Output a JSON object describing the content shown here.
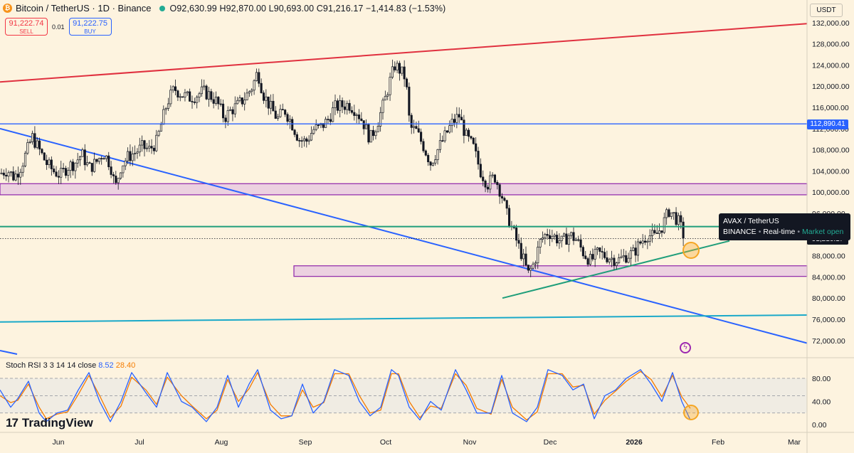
{
  "header": {
    "symbol_title": "Bitcoin / TetherUS · 1D · Binance",
    "symbol_icon": "bitcoin-icon",
    "ohlc": {
      "open": "O92,630.99",
      "high": "H92,870.00",
      "low": "L90,693.00",
      "close": "C91,216.17",
      "change": "−1,414.83 (−1.53%)"
    }
  },
  "trade": {
    "sell_price": "91,222.74",
    "sell_label": "SELL",
    "spread": "0.01",
    "buy_price": "91,222.75",
    "buy_label": "BUY"
  },
  "currency": "USDT",
  "tooltip": {
    "symbol": "AVAX / TetherUS",
    "exchange": "BINANCE",
    "feed": "Real-time",
    "status": "Market open"
  },
  "price_axis": {
    "labels": [
      "132,000.00",
      "128,000.00",
      "124,000.00",
      "120,000.00",
      "116,000.00",
      "112,000.00",
      "108,000.00",
      "104,000.00",
      "100,000.00",
      "96,000.00",
      "92,000.00",
      "88,000.00",
      "84,000.00",
      "80,000.00",
      "76,000.00",
      "72,000.00"
    ],
    "horizontal_level_tag": "112,890.41",
    "current_price_tag": "91,216.17"
  },
  "time_axis": {
    "labels": [
      "Jun",
      "Jul",
      "Aug",
      "Sep",
      "Oct",
      "Nov",
      "Dec",
      "2026",
      "Feb",
      "Mar"
    ]
  },
  "rsi": {
    "legend": "Stoch RSI 3 3 14 14 close",
    "k_value": "8.52",
    "d_value": "28.40",
    "axis_labels": [
      "80.00",
      "40.00",
      "0.00"
    ],
    "levels": [
      80,
      50,
      20
    ]
  },
  "branding": {
    "logo_text": "TradingView",
    "logo_mark": "17"
  },
  "colors": {
    "background": "#fdf3df",
    "up": "#131722",
    "resistance_line": "#e0303f",
    "blue_line": "#2962ff",
    "green_line": "#1f9e7a",
    "cyan_line": "#1aa9c9",
    "zone_fill": "#e6c5e0",
    "zone_border": "#8e24aa",
    "rsi_k": "#2962ff",
    "rsi_d": "#f57c00",
    "highlight_circle": "#f5a623"
  },
  "chart_data": {
    "type": "candlestick",
    "symbol": "BTCUSDT",
    "timeframe": "1D",
    "ylim": [
      70000,
      134000
    ],
    "x_range": [
      "2025-05-01",
      "2026-03-08"
    ],
    "close_path": [
      [
        0,
        103500
      ],
      [
        10,
        104200
      ],
      [
        20,
        102800
      ],
      [
        30,
        105000
      ],
      [
        40,
        108500
      ],
      [
        45,
        110500
      ],
      [
        55,
        108000
      ],
      [
        65,
        105500
      ],
      [
        75,
        104000
      ],
      [
        85,
        103200
      ],
      [
        95,
        104800
      ],
      [
        105,
        105500
      ],
      [
        115,
        107200
      ],
      [
        125,
        104500
      ],
      [
        135,
        105600
      ],
      [
        145,
        107500
      ],
      [
        155,
        105300
      ],
      [
        162,
        100800
      ],
      [
        170,
        105000
      ],
      [
        180,
        106700
      ],
      [
        190,
        107500
      ],
      [
        200,
        108500
      ],
      [
        210,
        108000
      ],
      [
        220,
        109500
      ],
      [
        228,
        113500
      ],
      [
        235,
        117000
      ],
      [
        245,
        119500
      ],
      [
        255,
        118500
      ],
      [
        265,
        117800
      ],
      [
        275,
        118200
      ],
      [
        285,
        119000
      ],
      [
        295,
        118300
      ],
      [
        305,
        117000
      ],
      [
        315,
        114000
      ],
      [
        325,
        115500
      ],
      [
        335,
        116500
      ],
      [
        345,
        118000
      ],
      [
        355,
        120000
      ],
      [
        362,
        122800
      ],
      [
        370,
        118500
      ],
      [
        380,
        116000
      ],
      [
        390,
        113800
      ],
      [
        400,
        115500
      ],
      [
        410,
        113000
      ],
      [
        420,
        110000
      ],
      [
        430,
        109500
      ],
      [
        440,
        111800
      ],
      [
        450,
        112200
      ],
      [
        460,
        113500
      ],
      [
        470,
        116000
      ],
      [
        480,
        116300
      ],
      [
        490,
        116600
      ],
      [
        500,
        115500
      ],
      [
        510,
        113300
      ],
      [
        520,
        110000
      ],
      [
        530,
        113000
      ],
      [
        540,
        117000
      ],
      [
        548,
        121000
      ],
      [
        555,
        124000
      ],
      [
        562,
        123000
      ],
      [
        570,
        121500
      ],
      [
        576,
        112200
      ],
      [
        585,
        111500
      ],
      [
        595,
        108700
      ],
      [
        605,
        105500
      ],
      [
        615,
        108000
      ],
      [
        625,
        110500
      ],
      [
        635,
        113000
      ],
      [
        645,
        114500
      ],
      [
        655,
        110500
      ],
      [
        665,
        108500
      ],
      [
        675,
        104000
      ],
      [
        685,
        101500
      ],
      [
        695,
        103000
      ],
      [
        705,
        99500
      ],
      [
        712,
        95800
      ],
      [
        720,
        93000
      ],
      [
        728,
        90000
      ],
      [
        735,
        87500
      ],
      [
        742,
        84500
      ],
      [
        750,
        86500
      ],
      [
        760,
        91000
      ],
      [
        770,
        92500
      ],
      [
        780,
        91500
      ],
      [
        790,
        90500
      ],
      [
        800,
        92000
      ],
      [
        810,
        91000
      ],
      [
        820,
        88500
      ],
      [
        830,
        87000
      ],
      [
        840,
        88500
      ],
      [
        850,
        88000
      ],
      [
        860,
        87500
      ],
      [
        870,
        87200
      ],
      [
        880,
        88000
      ],
      [
        890,
        88500
      ],
      [
        900,
        90500
      ],
      [
        910,
        92000
      ],
      [
        920,
        91500
      ],
      [
        930,
        93500
      ],
      [
        940,
        96500
      ],
      [
        948,
        95500
      ],
      [
        955,
        94000
      ],
      [
        962,
        91216
      ]
    ],
    "horizontal_levels": [
      112890.41,
      93500
    ],
    "zones": [
      {
        "from_x": 0,
        "to_x": 1134,
        "low": 99500,
        "high": 101600
      },
      {
        "from_x": 413,
        "to_x": 1134,
        "low": 84100,
        "high": 86100
      }
    ],
    "trendlines": [
      {
        "name": "resistance",
        "points": [
          [
            0,
            120800
          ],
          [
            1134,
            131800
          ]
        ]
      },
      {
        "name": "descending",
        "points": [
          [
            0,
            112000
          ],
          [
            1134,
            71500
          ]
        ]
      },
      {
        "name": "ascending",
        "points": [
          [
            706,
            80000
          ],
          [
            1025,
            90800
          ]
        ]
      },
      {
        "name": "long-term",
        "points": [
          [
            0,
            75500
          ],
          [
            1134,
            76800
          ]
        ]
      }
    ],
    "stoch_rsi": {
      "k": [
        [
          0,
          60
        ],
        [
          15,
          30
        ],
        [
          25,
          45
        ],
        [
          40,
          75
        ],
        [
          55,
          20
        ],
        [
          65,
          5
        ],
        [
          80,
          20
        ],
        [
          95,
          25
        ],
        [
          110,
          60
        ],
        [
          125,
          90
        ],
        [
          140,
          40
        ],
        [
          155,
          5
        ],
        [
          170,
          40
        ],
        [
          185,
          90
        ],
        [
          205,
          55
        ],
        [
          220,
          30
        ],
        [
          235,
          90
        ],
        [
          255,
          40
        ],
        [
          270,
          30
        ],
        [
          290,
          5
        ],
        [
          305,
          30
        ],
        [
          320,
          85
        ],
        [
          335,
          30
        ],
        [
          350,
          70
        ],
        [
          362,
          95
        ],
        [
          380,
          25
        ],
        [
          395,
          10
        ],
        [
          410,
          15
        ],
        [
          425,
          70
        ],
        [
          440,
          20
        ],
        [
          455,
          40
        ],
        [
          470,
          95
        ],
        [
          490,
          85
        ],
        [
          505,
          40
        ],
        [
          520,
          15
        ],
        [
          535,
          30
        ],
        [
          550,
          95
        ],
        [
          560,
          85
        ],
        [
          575,
          30
        ],
        [
          590,
          8
        ],
        [
          605,
          40
        ],
        [
          620,
          25
        ],
        [
          640,
          95
        ],
        [
          655,
          60
        ],
        [
          670,
          20
        ],
        [
          690,
          20
        ],
        [
          705,
          85
        ],
        [
          720,
          20
        ],
        [
          740,
          5
        ],
        [
          755,
          30
        ],
        [
          770,
          95
        ],
        [
          790,
          85
        ],
        [
          805,
          60
        ],
        [
          820,
          70
        ],
        [
          835,
          10
        ],
        [
          850,
          50
        ],
        [
          865,
          60
        ],
        [
          880,
          80
        ],
        [
          900,
          95
        ],
        [
          915,
          70
        ],
        [
          930,
          40
        ],
        [
          945,
          90
        ],
        [
          958,
          40
        ],
        [
          970,
          8
        ]
      ],
      "d": [
        [
          0,
          50
        ],
        [
          15,
          38
        ],
        [
          25,
          42
        ],
        [
          40,
          70
        ],
        [
          55,
          30
        ],
        [
          65,
          10
        ],
        [
          80,
          18
        ],
        [
          95,
          22
        ],
        [
          110,
          52
        ],
        [
          125,
          85
        ],
        [
          140,
          50
        ],
        [
          155,
          12
        ],
        [
          170,
          32
        ],
        [
          185,
          82
        ],
        [
          205,
          60
        ],
        [
          220,
          35
        ],
        [
          235,
          82
        ],
        [
          255,
          50
        ],
        [
          270,
          32
        ],
        [
          290,
          10
        ],
        [
          305,
          25
        ],
        [
          320,
          78
        ],
        [
          335,
          40
        ],
        [
          350,
          62
        ],
        [
          362,
          90
        ],
        [
          380,
          35
        ],
        [
          395,
          15
        ],
        [
          410,
          15
        ],
        [
          425,
          60
        ],
        [
          440,
          30
        ],
        [
          455,
          38
        ],
        [
          470,
          88
        ],
        [
          490,
          88
        ],
        [
          505,
          50
        ],
        [
          520,
          20
        ],
        [
          535,
          25
        ],
        [
          550,
          88
        ],
        [
          560,
          88
        ],
        [
          575,
          40
        ],
        [
          590,
          12
        ],
        [
          605,
          32
        ],
        [
          620,
          28
        ],
        [
          640,
          88
        ],
        [
          655,
          68
        ],
        [
          670,
          28
        ],
        [
          690,
          18
        ],
        [
          705,
          78
        ],
        [
          720,
          30
        ],
        [
          740,
          8
        ],
        [
          755,
          22
        ],
        [
          770,
          88
        ],
        [
          790,
          88
        ],
        [
          805,
          65
        ],
        [
          820,
          68
        ],
        [
          835,
          18
        ],
        [
          850,
          42
        ],
        [
          865,
          58
        ],
        [
          880,
          75
        ],
        [
          900,
          92
        ],
        [
          915,
          78
        ],
        [
          930,
          48
        ],
        [
          945,
          85
        ],
        [
          958,
          48
        ],
        [
          970,
          28
        ]
      ]
    }
  }
}
